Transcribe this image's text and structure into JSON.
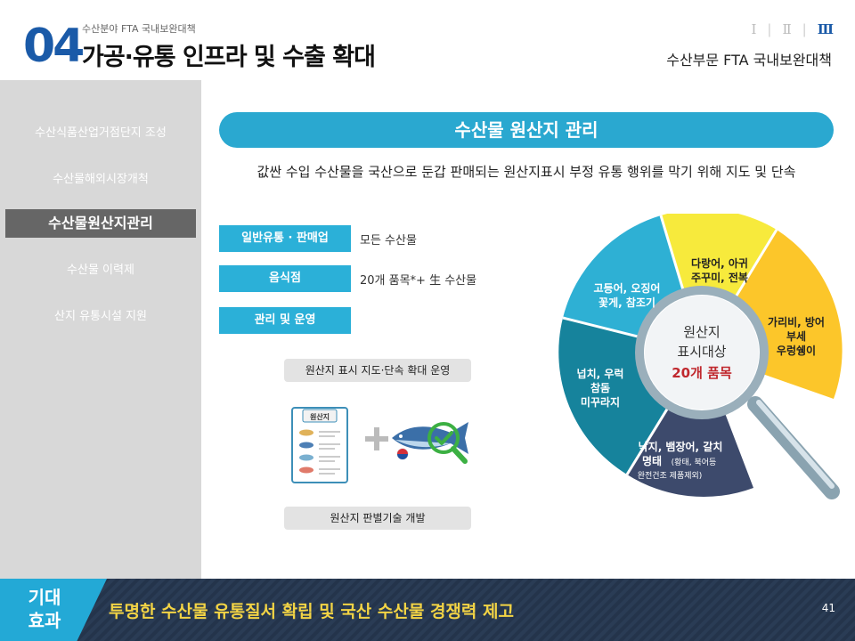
{
  "header": {
    "number": "04",
    "small_label": "수산분야 FTA 국내보완대책",
    "title": "가공·유통 인프라 및 수출 확대",
    "roman": [
      "Ⅰ",
      "Ⅱ",
      "Ⅲ"
    ],
    "subtitle": "수산부문 FTA 국내보완대책"
  },
  "sidebar": {
    "items": [
      "수산식품산업거점단지 조성",
      "수산물해외시장개척",
      "수산물원산지관리",
      "수산물 이력제",
      "산지 유통시설 지원"
    ]
  },
  "main": {
    "banner": "수산물 원산지 관리",
    "description": "값싼 수입 수산물을 국산으로 둔갑 판매되는 원산지표시 부정 유통 행위를 막기 위해 지도 및 단속",
    "categories": [
      {
        "label": "일반유통 · 판매업",
        "value": "모든 수산물"
      },
      {
        "label": "음식점",
        "value": "20개 품목*+  生 수산물"
      },
      {
        "label": "관리 및 운영",
        "value": ""
      }
    ],
    "pill_top": "원산지 표시 지도·단속 확대 운영",
    "pill_bottom": "원산지 판별기술 개발",
    "doc_label": "원산지"
  },
  "donut": {
    "center_line1": "원산지",
    "center_line2": "표시대상",
    "center_line3": "20개 품목",
    "seg1_line1": "고등어, 오징어",
    "seg1_line2": "꽃게, 참조기",
    "seg2_line1": "다랑어, 아귀",
    "seg2_line2": "주꾸미, 전복",
    "seg3_line1": "가리비, 방어",
    "seg3_line2": "부세",
    "seg3_line3": "우렁쉥이",
    "seg4_line1": "넙치, 우럭",
    "seg4_line2": "참돔",
    "seg4_line3": "미꾸라지",
    "seg5_line1": "낙지, 뱀장어, 갈치",
    "seg5_line2": "명태",
    "seg5_line2b": "(황태, 북어등",
    "seg5_line3": "완전건조 제품제외)"
  },
  "footer": {
    "tag": "기대 효과",
    "message": "투명한 수산물 유통질서 확립 및 국산 수산물 경쟁력 제고",
    "page": "41"
  }
}
